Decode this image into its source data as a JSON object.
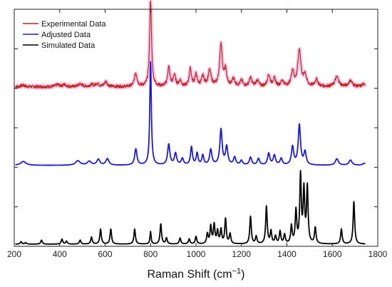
{
  "chart_data": {
    "type": "line",
    "xlabel": "Raman Shift (cm",
    "xlabel_sup": "−1",
    "xlabel_close": ")",
    "xlim": [
      200,
      1800
    ],
    "x_ticks": [
      200,
      400,
      600,
      800,
      1000,
      1200,
      1400,
      1600,
      1800
    ],
    "y_ticks_count": 6,
    "grid": false,
    "legend_position": "top-left",
    "x_range": [
      205,
      1745
    ],
    "series": [
      {
        "name": "Experimental Data",
        "color": "#c0251c",
        "halo_color": "#f28ad0",
        "baseline": 0.08,
        "scale": 1.12,
        "noise": 0.9,
        "peaks": [
          {
            "x": 238,
            "h": 0.4,
            "w": 10
          },
          {
            "x": 390,
            "h": 0.5,
            "w": 10
          },
          {
            "x": 420,
            "h": 0.5,
            "w": 10
          },
          {
            "x": 490,
            "h": 0.7,
            "w": 10
          },
          {
            "x": 540,
            "h": 0.5,
            "w": 10
          },
          {
            "x": 565,
            "h": 0.8,
            "w": 8
          },
          {
            "x": 603,
            "h": 1.3,
            "w": 8
          },
          {
            "x": 735,
            "h": 3.5,
            "w": 7
          },
          {
            "x": 800,
            "h": 22.5,
            "w": 5
          },
          {
            "x": 880,
            "h": 5.0,
            "w": 6
          },
          {
            "x": 905,
            "h": 3.0,
            "w": 6
          },
          {
            "x": 930,
            "h": 1.5,
            "w": 6
          },
          {
            "x": 975,
            "h": 4.5,
            "w": 6
          },
          {
            "x": 1000,
            "h": 3.0,
            "w": 6
          },
          {
            "x": 1030,
            "h": 2.5,
            "w": 7
          },
          {
            "x": 1060,
            "h": 4.0,
            "w": 8
          },
          {
            "x": 1110,
            "h": 11.0,
            "w": 7
          },
          {
            "x": 1130,
            "h": 4.0,
            "w": 6
          },
          {
            "x": 1165,
            "h": 2.0,
            "w": 7
          },
          {
            "x": 1200,
            "h": 1.5,
            "w": 7
          },
          {
            "x": 1240,
            "h": 2.2,
            "w": 7
          },
          {
            "x": 1270,
            "h": 1.6,
            "w": 7
          },
          {
            "x": 1320,
            "h": 3.0,
            "w": 7
          },
          {
            "x": 1345,
            "h": 2.0,
            "w": 7
          },
          {
            "x": 1380,
            "h": 1.5,
            "w": 7
          },
          {
            "x": 1425,
            "h": 4.0,
            "w": 7
          },
          {
            "x": 1455,
            "h": 9.5,
            "w": 8
          },
          {
            "x": 1480,
            "h": 3.0,
            "w": 7
          },
          {
            "x": 1530,
            "h": 1.8,
            "w": 8
          },
          {
            "x": 1620,
            "h": 2.5,
            "w": 10
          },
          {
            "x": 1680,
            "h": 1.5,
            "w": 10
          },
          {
            "x": 1740,
            "h": 0.8,
            "w": 8
          }
        ]
      },
      {
        "name": "Adjusted Data",
        "color": "#1a1ad9",
        "baseline": 0.15,
        "scale": 1.35,
        "peaks": [
          {
            "x": 240,
            "h": 0.6,
            "w": 14
          },
          {
            "x": 480,
            "h": 0.7,
            "w": 12
          },
          {
            "x": 530,
            "h": 0.6,
            "w": 10
          },
          {
            "x": 570,
            "h": 0.9,
            "w": 8
          },
          {
            "x": 610,
            "h": 1.0,
            "w": 8
          },
          {
            "x": 735,
            "h": 2.5,
            "w": 6
          },
          {
            "x": 800,
            "h": 16.0,
            "w": 4
          },
          {
            "x": 880,
            "h": 3.2,
            "w": 6
          },
          {
            "x": 910,
            "h": 1.8,
            "w": 6
          },
          {
            "x": 940,
            "h": 1.0,
            "w": 6
          },
          {
            "x": 980,
            "h": 2.8,
            "w": 5
          },
          {
            "x": 1005,
            "h": 1.8,
            "w": 5
          },
          {
            "x": 1030,
            "h": 1.5,
            "w": 5
          },
          {
            "x": 1065,
            "h": 2.4,
            "w": 6
          },
          {
            "x": 1110,
            "h": 5.5,
            "w": 6
          },
          {
            "x": 1135,
            "h": 2.8,
            "w": 6
          },
          {
            "x": 1170,
            "h": 1.2,
            "w": 6
          },
          {
            "x": 1200,
            "h": 0.7,
            "w": 6
          },
          {
            "x": 1240,
            "h": 1.2,
            "w": 6
          },
          {
            "x": 1275,
            "h": 1.0,
            "w": 6
          },
          {
            "x": 1320,
            "h": 1.8,
            "w": 6
          },
          {
            "x": 1345,
            "h": 1.5,
            "w": 6
          },
          {
            "x": 1375,
            "h": 1.0,
            "w": 6
          },
          {
            "x": 1425,
            "h": 2.8,
            "w": 6
          },
          {
            "x": 1455,
            "h": 6.2,
            "w": 6
          },
          {
            "x": 1480,
            "h": 2.0,
            "w": 6
          },
          {
            "x": 1620,
            "h": 1.0,
            "w": 8
          },
          {
            "x": 1680,
            "h": 0.8,
            "w": 8
          },
          {
            "x": 1740,
            "h": 0.3,
            "w": 8
          }
        ]
      },
      {
        "name": "Simulated Data",
        "color": "#000000",
        "baseline": 0.0,
        "scale": 1.0,
        "peaks": [
          {
            "x": 230,
            "h": 0.5,
            "w": 4
          },
          {
            "x": 250,
            "h": 0.3,
            "w": 4
          },
          {
            "x": 320,
            "h": 0.8,
            "w": 4
          },
          {
            "x": 410,
            "h": 1.0,
            "w": 4
          },
          {
            "x": 430,
            "h": 0.6,
            "w": 4
          },
          {
            "x": 490,
            "h": 0.8,
            "w": 4
          },
          {
            "x": 540,
            "h": 1.4,
            "w": 4
          },
          {
            "x": 580,
            "h": 3.0,
            "w": 4
          },
          {
            "x": 625,
            "h": 3.0,
            "w": 4
          },
          {
            "x": 730,
            "h": 3.0,
            "w": 4
          },
          {
            "x": 800,
            "h": 2.5,
            "w": 3
          },
          {
            "x": 845,
            "h": 4.0,
            "w": 4
          },
          {
            "x": 870,
            "h": 1.2,
            "w": 4
          },
          {
            "x": 930,
            "h": 1.2,
            "w": 4
          },
          {
            "x": 970,
            "h": 1.0,
            "w": 4
          },
          {
            "x": 1000,
            "h": 1.5,
            "w": 4
          },
          {
            "x": 1050,
            "h": 2.0,
            "w": 4
          },
          {
            "x": 1065,
            "h": 3.5,
            "w": 4
          },
          {
            "x": 1080,
            "h": 3.8,
            "w": 4
          },
          {
            "x": 1095,
            "h": 2.5,
            "w": 4
          },
          {
            "x": 1110,
            "h": 2.8,
            "w": 4
          },
          {
            "x": 1130,
            "h": 5.0,
            "w": 4
          },
          {
            "x": 1150,
            "h": 2.0,
            "w": 4
          },
          {
            "x": 1240,
            "h": 5.5,
            "w": 4
          },
          {
            "x": 1265,
            "h": 1.5,
            "w": 4
          },
          {
            "x": 1310,
            "h": 7.5,
            "w": 4
          },
          {
            "x": 1330,
            "h": 2.5,
            "w": 4
          },
          {
            "x": 1350,
            "h": 1.5,
            "w": 4
          },
          {
            "x": 1370,
            "h": 2.5,
            "w": 4
          },
          {
            "x": 1390,
            "h": 1.8,
            "w": 4
          },
          {
            "x": 1420,
            "h": 3.5,
            "w": 4
          },
          {
            "x": 1440,
            "h": 6.5,
            "w": 4
          },
          {
            "x": 1460,
            "h": 13.5,
            "w": 4
          },
          {
            "x": 1475,
            "h": 10.5,
            "w": 4
          },
          {
            "x": 1490,
            "h": 11.2,
            "w": 4
          },
          {
            "x": 1525,
            "h": 3.2,
            "w": 4
          },
          {
            "x": 1640,
            "h": 3.0,
            "w": 4
          },
          {
            "x": 1695,
            "h": 8.5,
            "w": 4
          }
        ]
      }
    ]
  }
}
